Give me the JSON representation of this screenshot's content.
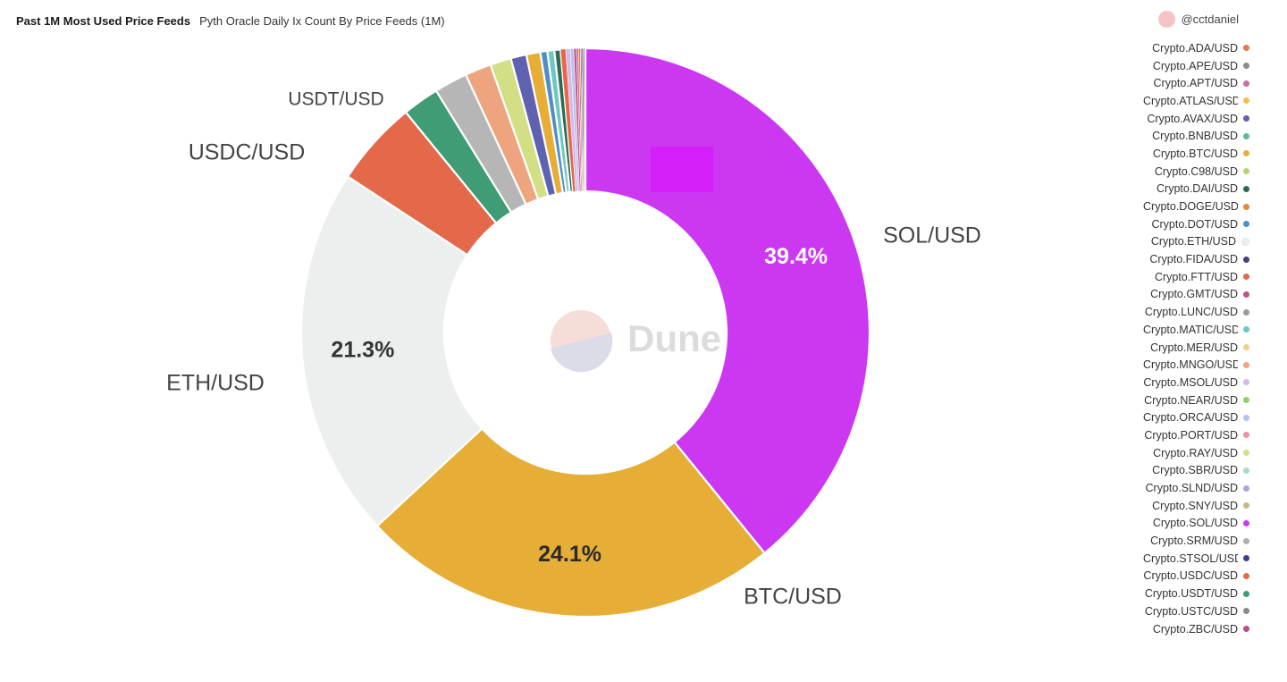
{
  "header": {
    "title": "Past 1M Most Used Price Feeds",
    "subtitle": "Pyth Oracle Daily Ix Count By Price Feeds (1M)"
  },
  "author": {
    "handle": "@cctdaniel"
  },
  "watermark": {
    "text": "Dune"
  },
  "chart_data": {
    "type": "pie",
    "donut": true,
    "slices": [
      {
        "name": "SOL/USD",
        "value": 39.4,
        "color": "#cc38f2",
        "label": "SOL/USD",
        "pct_label": "39.4%"
      },
      {
        "name": "BTC/USD",
        "value": 24.1,
        "color": "#e6ad37",
        "label": "BTC/USD",
        "pct_label": "24.1%"
      },
      {
        "name": "ETH/USD",
        "value": 21.3,
        "color": "#edefee",
        "label": "ETH/USD",
        "pct_label": "21.3%"
      },
      {
        "name": "USDC/USD",
        "value": 4.9,
        "color": "#e4694b",
        "label": "USDC/USD"
      },
      {
        "name": "USDT/USD",
        "value": 2.1,
        "color": "#3f9c74",
        "label": "USDT/USD"
      },
      {
        "name": "USTC/USD",
        "value": 1.9,
        "color": "#b6b6b6"
      },
      {
        "name": "MNGO/USD",
        "value": 1.5,
        "color": "#eea47e"
      },
      {
        "name": "RAY/USD",
        "value": 1.2,
        "color": "#d2df84"
      },
      {
        "name": "AVAX/USD",
        "value": 0.9,
        "color": "#5f62b1"
      },
      {
        "name": "BNB/USD",
        "value": 0.8,
        "color": "#e6ad37"
      },
      {
        "name": "DOT/USD",
        "value": 0.4,
        "color": "#4f8ec8"
      },
      {
        "name": "MATIC/USD",
        "value": 0.4,
        "color": "#6fc7c2"
      },
      {
        "name": "DAI/USD",
        "value": 0.35,
        "color": "#2e6b55"
      },
      {
        "name": "FTT/USD",
        "value": 0.3,
        "color": "#e4694b"
      },
      {
        "name": "MSOL/USD",
        "value": 0.25,
        "color": "#d7b7ea"
      },
      {
        "name": "ORCA/USD",
        "value": 0.2,
        "color": "#b8c2ee"
      },
      {
        "name": "GMT/USD",
        "value": 0.15,
        "color": "#c44f82"
      },
      {
        "name": "APT/USD",
        "value": 0.12,
        "color": "#c76fa3"
      },
      {
        "name": "ADA/USD",
        "value": 0.1,
        "color": "#e07a4f"
      },
      {
        "name": "APE/USD",
        "value": 0.09,
        "color": "#8c8c8c"
      },
      {
        "name": "FIDA/USD",
        "value": 0.08,
        "color": "#4a3f7a"
      },
      {
        "name": "ZBC/USD",
        "value": 0.07,
        "color": "#b44f8a"
      },
      {
        "name": "SRM/USD",
        "value": 0.05,
        "color": "#b0b0b0"
      }
    ]
  },
  "legend": {
    "items": [
      {
        "label": "Crypto.ADA/USD",
        "color": "#e07a4f"
      },
      {
        "label": "Crypto.APE/USD",
        "color": "#8c8c8c"
      },
      {
        "label": "Crypto.APT/USD",
        "color": "#c76fa3"
      },
      {
        "label": "Crypto.ATLAS/USD",
        "color": "#f0c04a"
      },
      {
        "label": "Crypto.AVAX/USD",
        "color": "#5f62b1"
      },
      {
        "label": "Crypto.BNB/USD",
        "color": "#5fb99a"
      },
      {
        "label": "Crypto.BTC/USD",
        "color": "#e6ad37"
      },
      {
        "label": "Crypto.C98/USD",
        "color": "#b6d46a"
      },
      {
        "label": "Crypto.DAI/USD",
        "color": "#2e6b55"
      },
      {
        "label": "Crypto.DOGE/USD",
        "color": "#e08a3a"
      },
      {
        "label": "Crypto.DOT/USD",
        "color": "#4f8ec8"
      },
      {
        "label": "Crypto.ETH/USD",
        "color": "#eeeeee"
      },
      {
        "label": "Crypto.FIDA/USD",
        "color": "#4a3f7a"
      },
      {
        "label": "Crypto.FTT/USD",
        "color": "#e4694b"
      },
      {
        "label": "Crypto.GMT/USD",
        "color": "#c44f82"
      },
      {
        "label": "Crypto.LUNC/USD",
        "color": "#9a9a9a"
      },
      {
        "label": "Crypto.MATIC/USD",
        "color": "#6fc7c2"
      },
      {
        "label": "Crypto.MER/USD",
        "color": "#f2d27e"
      },
      {
        "label": "Crypto.MNGO/USD",
        "color": "#eea47e"
      },
      {
        "label": "Crypto.MSOL/USD",
        "color": "#d7b7ea"
      },
      {
        "label": "Crypto.NEAR/USD",
        "color": "#8fcf6a"
      },
      {
        "label": "Crypto.ORCA/USD",
        "color": "#b8c2ee"
      },
      {
        "label": "Crypto.PORT/USD",
        "color": "#ee8fa6"
      },
      {
        "label": "Crypto.RAY/USD",
        "color": "#d2df84"
      },
      {
        "label": "Crypto.SBR/USD",
        "color": "#a8dcc0"
      },
      {
        "label": "Crypto.SLND/USD",
        "color": "#a9a6e0"
      },
      {
        "label": "Crypto.SNY/USD",
        "color": "#c9b98a"
      },
      {
        "label": "Crypto.SOL/USD",
        "color": "#cc38f2"
      },
      {
        "label": "Crypto.SRM/USD",
        "color": "#b0b0b0"
      },
      {
        "label": "Crypto.STSOL/USD",
        "color": "#3c3f8f"
      },
      {
        "label": "Crypto.USDC/USD",
        "color": "#e4694b"
      },
      {
        "label": "Crypto.USDT/USD",
        "color": "#3f9c74"
      },
      {
        "label": "Crypto.USTC/USD",
        "color": "#8a8a8a"
      },
      {
        "label": "Crypto.ZBC/USD",
        "color": "#b44f8a"
      }
    ]
  }
}
